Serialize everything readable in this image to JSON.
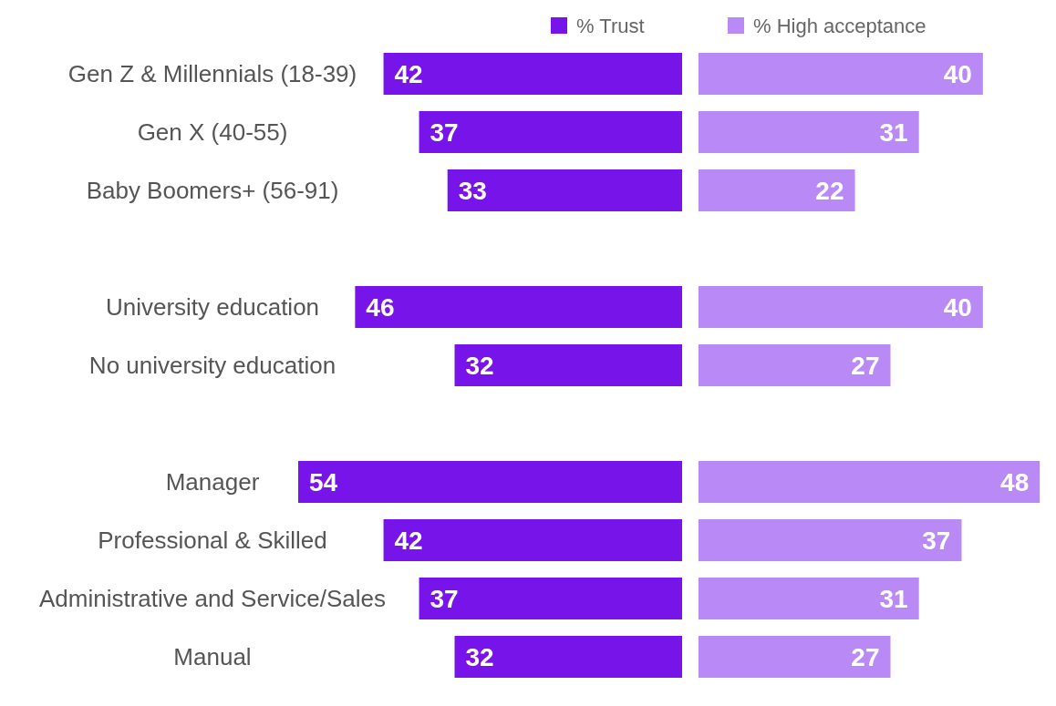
{
  "chart_data": [
    {
      "type": "bar",
      "orientation": "horizontal",
      "categories": [
        "Gen Z & Millennials (18-39)",
        "Gen X (40-55)",
        "Baby Boomers+ (56-91)",
        null,
        "University education",
        "No university education",
        null,
        "Manager",
        "Professional & Skilled",
        "Administrative and Service/Sales",
        "Manual"
      ],
      "series": [
        {
          "name": "% Trust",
          "color": "#7614ea",
          "values": [
            42,
            37,
            33,
            null,
            46,
            32,
            null,
            54,
            42,
            37,
            32
          ]
        }
      ],
      "data_labels": true,
      "legend": "top",
      "grid": false
    },
    {
      "type": "bar",
      "orientation": "horizontal",
      "categories": [
        null,
        null,
        null,
        null,
        null,
        null,
        null,
        null,
        null,
        null,
        null
      ],
      "series": [
        {
          "name": "% High acceptance",
          "color": "#b98af5",
          "values": [
            40,
            31,
            22,
            null,
            40,
            27,
            null,
            48,
            37,
            31,
            27
          ]
        }
      ],
      "data_labels": true,
      "legend": "top",
      "grid": false
    }
  ]
}
